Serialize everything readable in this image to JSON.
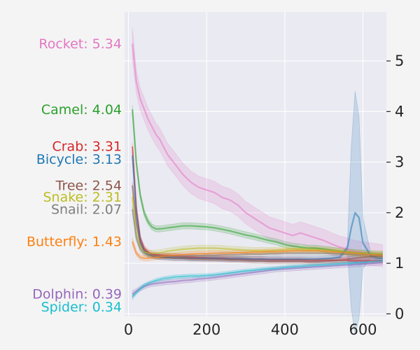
{
  "chart_data": {
    "type": "line",
    "xlabel": "",
    "ylabel": "",
    "xlim": [
      -10,
      660
    ],
    "ylim": [
      -0.05,
      5.97
    ],
    "x_ticks": [
      0,
      200,
      400,
      600
    ],
    "y_ticks": [
      0,
      1,
      2,
      3,
      4,
      5
    ],
    "y_axis_side": "right",
    "grid": true,
    "style": "seaborn-darkgrid",
    "x": [
      10,
      20,
      30,
      40,
      50,
      60,
      70,
      80,
      90,
      100,
      120,
      140,
      160,
      180,
      200,
      220,
      240,
      260,
      280,
      300,
      320,
      340,
      360,
      380,
      400,
      420,
      440,
      460,
      480,
      500,
      520,
      540,
      560,
      570,
      580,
      590,
      600,
      620,
      640,
      650
    ],
    "series": [
      {
        "name": "Rocket",
        "label": "Rocket: 5.34",
        "color": "#e377c2",
        "band": 0.22,
        "values": [
          5.34,
          4.6,
          4.25,
          4.05,
          3.85,
          3.7,
          3.55,
          3.45,
          3.3,
          3.15,
          2.95,
          2.75,
          2.6,
          2.5,
          2.45,
          2.4,
          2.3,
          2.25,
          2.15,
          2.0,
          1.9,
          1.8,
          1.7,
          1.65,
          1.6,
          1.55,
          1.6,
          1.55,
          1.5,
          1.45,
          1.38,
          1.32,
          1.28,
          1.25,
          1.23,
          1.22,
          1.2,
          1.18,
          1.16,
          1.15
        ]
      },
      {
        "name": "Camel",
        "label": "Camel: 4.04",
        "color": "#2ca02c",
        "band": 0.06,
        "values": [
          4.04,
          3.0,
          2.35,
          2.0,
          1.82,
          1.72,
          1.68,
          1.68,
          1.69,
          1.7,
          1.72,
          1.74,
          1.74,
          1.73,
          1.72,
          1.7,
          1.67,
          1.64,
          1.6,
          1.56,
          1.53,
          1.49,
          1.45,
          1.42,
          1.37,
          1.34,
          1.32,
          1.3,
          1.3,
          1.28,
          1.26,
          1.24,
          1.22,
          1.22,
          1.21,
          1.2,
          1.2,
          1.19,
          1.18,
          1.18
        ]
      },
      {
        "name": "Crab",
        "label": "Crab: 3.31",
        "color": "#d62728",
        "band": 0.05,
        "values": [
          3.31,
          2.1,
          1.5,
          1.3,
          1.22,
          1.18,
          1.17,
          1.16,
          1.15,
          1.15,
          1.14,
          1.13,
          1.12,
          1.11,
          1.11,
          1.1,
          1.1,
          1.09,
          1.09,
          1.08,
          1.08,
          1.08,
          1.07,
          1.07,
          1.07,
          1.07,
          1.07,
          1.06,
          1.06,
          1.06,
          1.06,
          1.06,
          1.06,
          1.05,
          1.05,
          1.05,
          1.05,
          1.05,
          1.05,
          1.05
        ]
      },
      {
        "name": "Bicycle",
        "label": "Bicycle: 3.13",
        "color": "#1f77b4",
        "band": 0.05,
        "spike_band": {
          "575": 1.6,
          "580": 2.4,
          "585": 2.0,
          "590": 1.2,
          "600": 0.5
        },
        "values": [
          3.13,
          2.0,
          1.45,
          1.25,
          1.18,
          1.15,
          1.14,
          1.13,
          1.12,
          1.12,
          1.11,
          1.11,
          1.1,
          1.1,
          1.1,
          1.1,
          1.09,
          1.09,
          1.09,
          1.09,
          1.08,
          1.08,
          1.08,
          1.08,
          1.08,
          1.08,
          1.08,
          1.08,
          1.08,
          1.09,
          1.1,
          1.12,
          1.3,
          1.7,
          2.0,
          1.9,
          1.4,
          1.15,
          1.1,
          1.1
        ]
      },
      {
        "name": "Tree",
        "label": "Tree: 2.54",
        "color": "#8c564b",
        "band": 0.05,
        "values": [
          2.54,
          1.8,
          1.4,
          1.25,
          1.18,
          1.15,
          1.13,
          1.12,
          1.12,
          1.11,
          1.1,
          1.1,
          1.09,
          1.09,
          1.08,
          1.08,
          1.08,
          1.07,
          1.07,
          1.06,
          1.05,
          1.05,
          1.04,
          1.04,
          1.04,
          1.04,
          1.04,
          1.03,
          1.03,
          1.04,
          1.05,
          1.06,
          1.08,
          1.09,
          1.1,
          1.11,
          1.12,
          1.13,
          1.14,
          1.14
        ]
      },
      {
        "name": "Snake",
        "label": "Snake: 2.31",
        "color": "#bcbd22",
        "band": 0.06,
        "values": [
          2.31,
          1.6,
          1.32,
          1.22,
          1.2,
          1.2,
          1.2,
          1.21,
          1.22,
          1.24,
          1.26,
          1.28,
          1.29,
          1.3,
          1.3,
          1.3,
          1.29,
          1.28,
          1.27,
          1.26,
          1.25,
          1.25,
          1.25,
          1.26,
          1.27,
          1.28,
          1.28,
          1.28,
          1.27,
          1.26,
          1.25,
          1.24,
          1.22,
          1.22,
          1.21,
          1.2,
          1.2,
          1.19,
          1.18,
          1.18
        ]
      },
      {
        "name": "Snail",
        "label": "Snail: 2.07",
        "color": "#7f7f7f",
        "band": 0.05,
        "values": [
          2.07,
          1.5,
          1.28,
          1.2,
          1.17,
          1.15,
          1.14,
          1.14,
          1.14,
          1.14,
          1.14,
          1.14,
          1.15,
          1.15,
          1.16,
          1.16,
          1.17,
          1.17,
          1.17,
          1.18,
          1.18,
          1.18,
          1.19,
          1.19,
          1.2,
          1.2,
          1.2,
          1.2,
          1.2,
          1.2,
          1.19,
          1.19,
          1.18,
          1.18,
          1.17,
          1.17,
          1.17,
          1.16,
          1.16,
          1.16
        ]
      },
      {
        "name": "Butterfly",
        "label": "Butterfly: 1.43",
        "color": "#ff7f0e",
        "band": 0.05,
        "values": [
          1.43,
          1.2,
          1.12,
          1.1,
          1.1,
          1.11,
          1.12,
          1.13,
          1.14,
          1.15,
          1.16,
          1.17,
          1.18,
          1.19,
          1.19,
          1.2,
          1.2,
          1.2,
          1.21,
          1.21,
          1.22,
          1.22,
          1.23,
          1.23,
          1.24,
          1.25,
          1.25,
          1.25,
          1.25,
          1.24,
          1.23,
          1.22,
          1.21,
          1.2,
          1.2,
          1.19,
          1.18,
          1.17,
          1.16,
          1.16
        ]
      },
      {
        "name": "Dolphin",
        "label": "Dolphin: 0.39",
        "color": "#9467bd",
        "band": 0.05,
        "values": [
          0.39,
          0.45,
          0.5,
          0.54,
          0.57,
          0.59,
          0.6,
          0.61,
          0.62,
          0.63,
          0.64,
          0.66,
          0.67,
          0.69,
          0.7,
          0.72,
          0.74,
          0.76,
          0.78,
          0.8,
          0.82,
          0.84,
          0.86,
          0.88,
          0.89,
          0.9,
          0.91,
          0.92,
          0.93,
          0.94,
          0.95,
          0.96,
          0.97,
          0.97,
          0.98,
          0.98,
          0.99,
          1.0,
          1.01,
          1.02
        ]
      },
      {
        "name": "Spider",
        "label": "Spider: 0.34",
        "color": "#17becf",
        "band": 0.04,
        "values": [
          0.34,
          0.42,
          0.5,
          0.56,
          0.6,
          0.63,
          0.66,
          0.68,
          0.7,
          0.71,
          0.73,
          0.74,
          0.75,
          0.75,
          0.76,
          0.77,
          0.79,
          0.81,
          0.83,
          0.85,
          0.86,
          0.88,
          0.89,
          0.9,
          0.92,
          0.93,
          0.94,
          0.95,
          0.96,
          0.97,
          0.98,
          0.99,
          1.0,
          1.0,
          1.01,
          1.01,
          1.02,
          1.03,
          1.04,
          1.05
        ]
      }
    ],
    "label_positions": {
      "Rocket": 5.34,
      "Camel": 4.04,
      "Crab": 3.31,
      "Bicycle": 3.06,
      "Tree": 2.54,
      "Snake": 2.31,
      "Snail": 2.07,
      "Butterfly": 1.43,
      "Dolphin": 0.39,
      "Spider": 0.14
    }
  }
}
